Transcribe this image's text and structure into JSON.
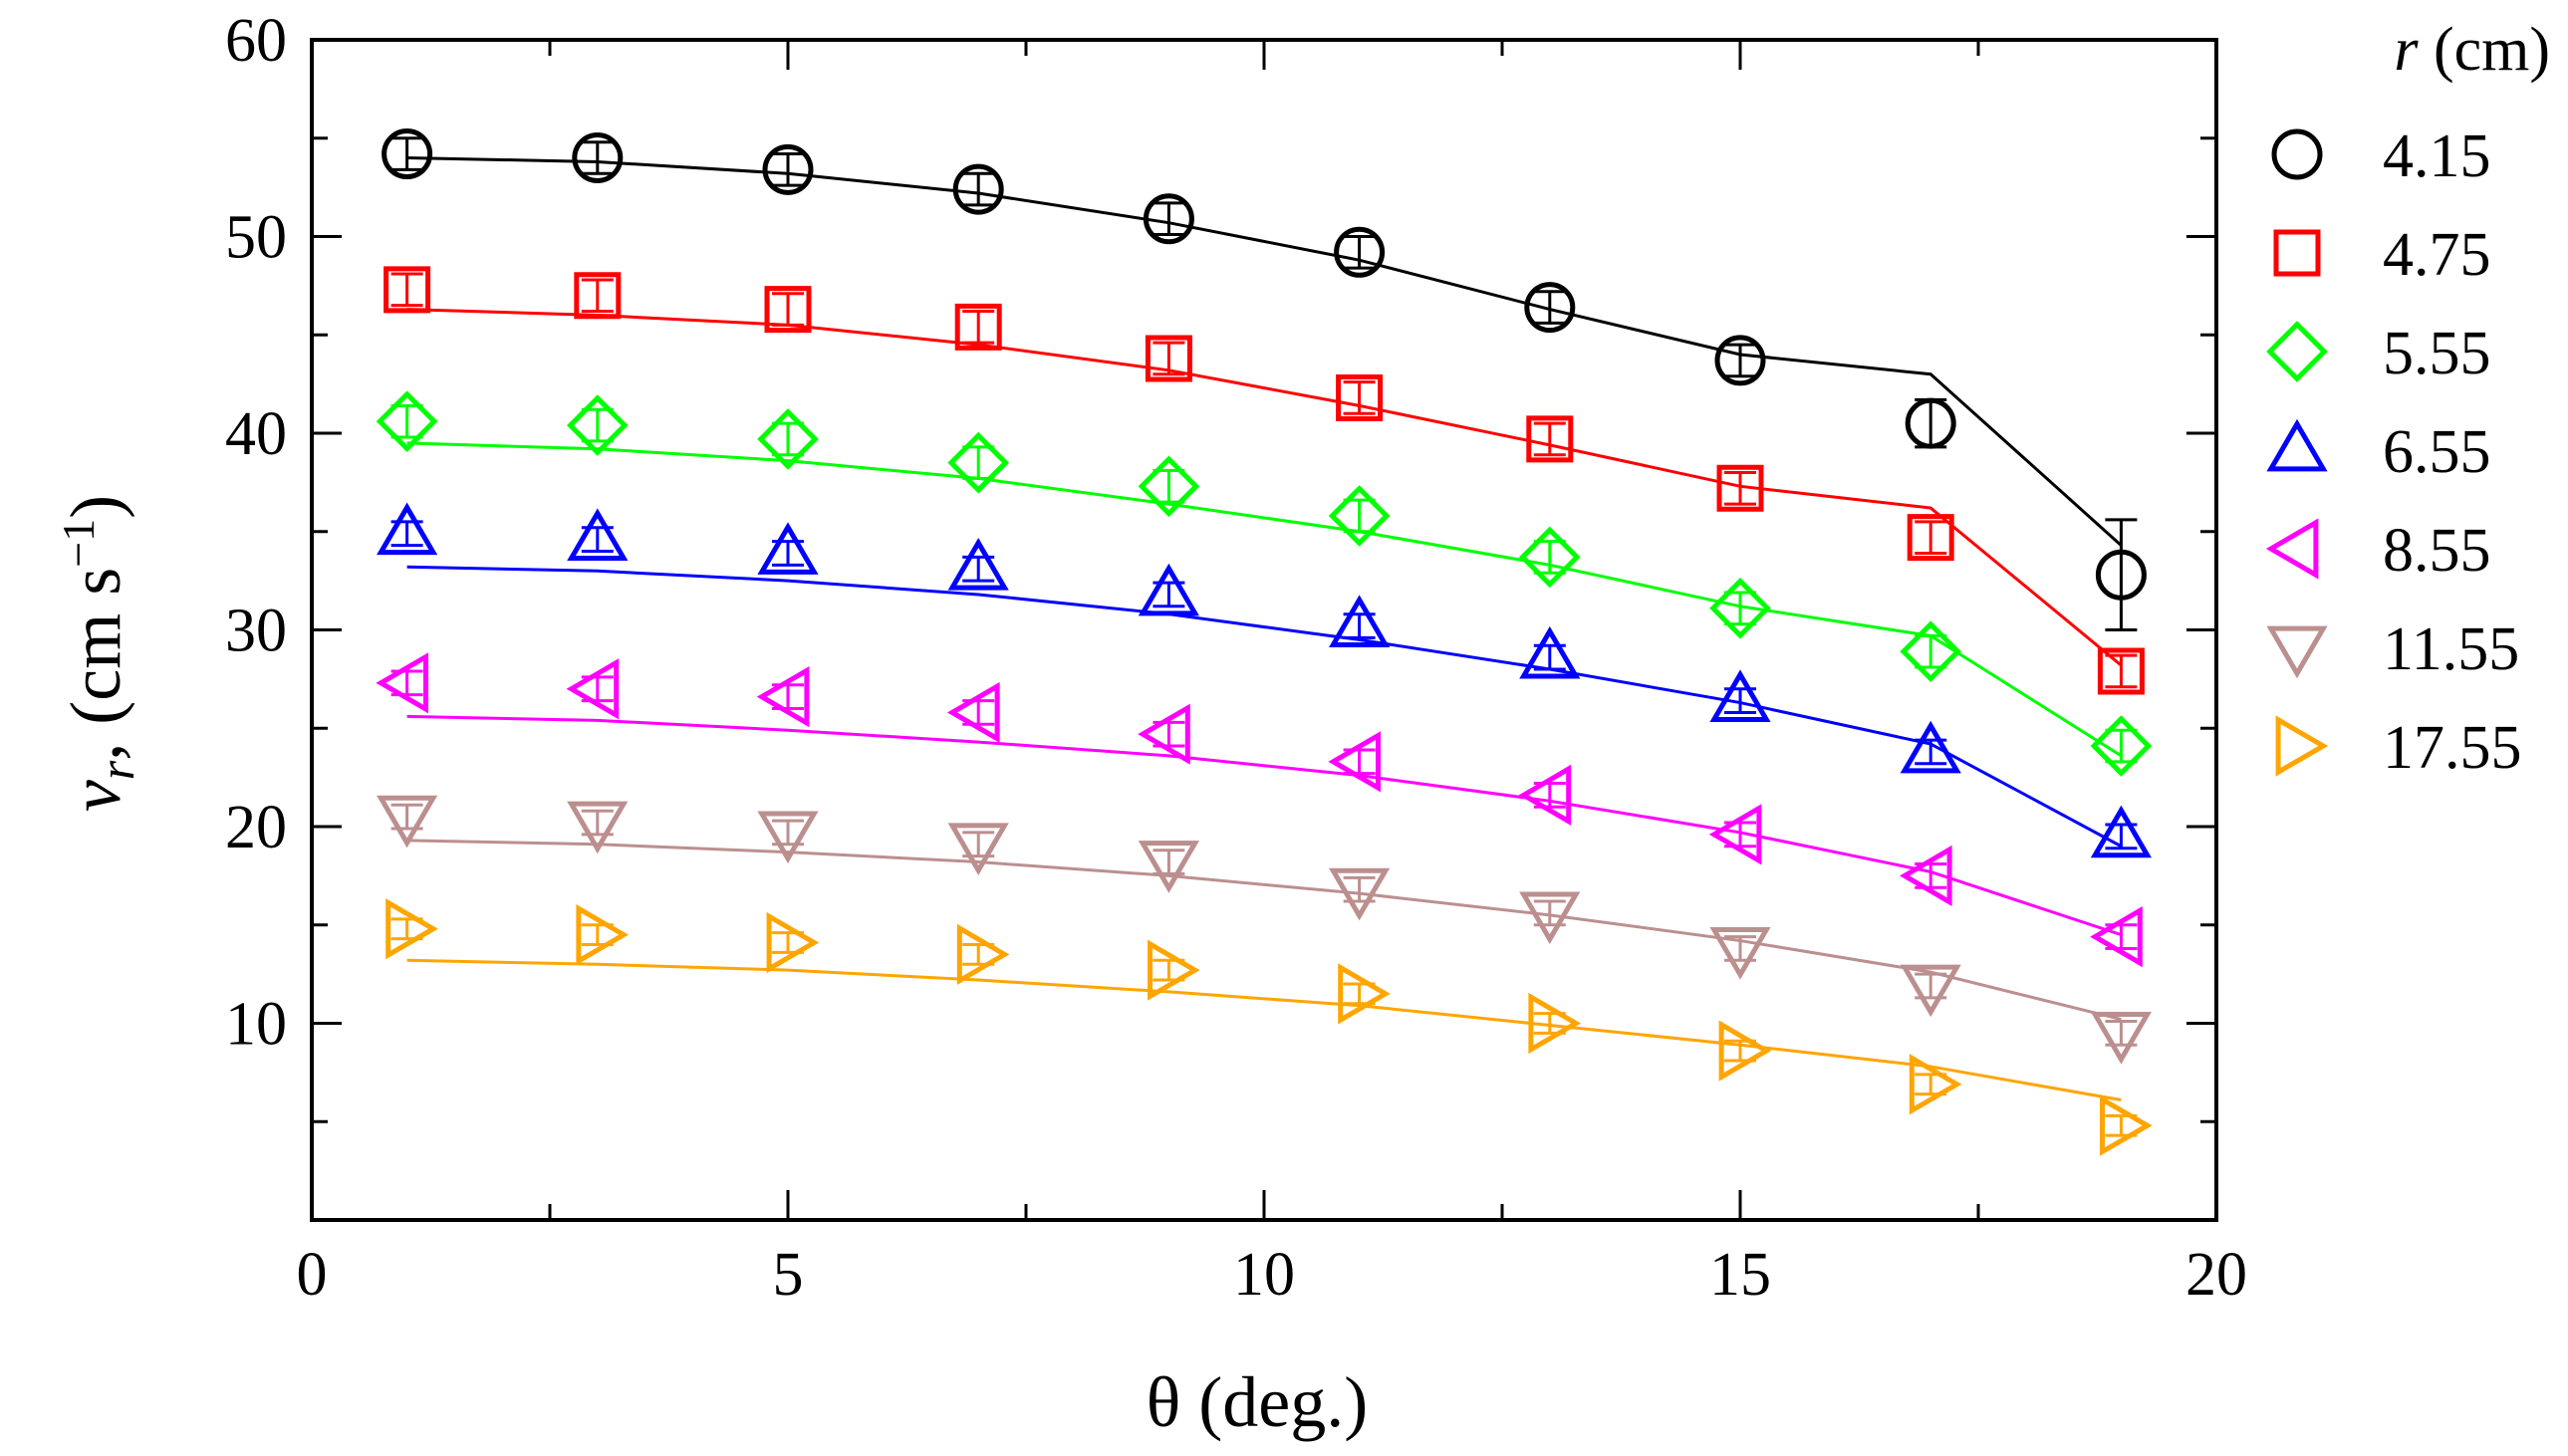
{
  "chart_data": {
    "type": "line",
    "xlabel": "θ (deg.)",
    "ylabel_var": "v",
    "ylabel_sub": "r",
    "ylabel_unit_prefix": ", (cm s",
    "ylabel_unit_sup": "−1",
    "ylabel_unit_suffix": ")",
    "xlim": [
      0,
      20
    ],
    "ylim": [
      0,
      60
    ],
    "xticks": [
      0,
      5,
      10,
      15,
      20
    ],
    "yticks": [
      10,
      20,
      30,
      40,
      50,
      60
    ],
    "x_minor_ticks": [
      2.5,
      7.5,
      12.5,
      17.5
    ],
    "y_minor_ticks": [
      5,
      15,
      25,
      35,
      45,
      55
    ],
    "legend_title_var": "r",
    "legend_title_unit": " (cm)",
    "legend_position": "outside-right",
    "x": [
      1,
      3,
      5,
      7,
      9,
      11,
      13,
      15,
      17,
      19
    ],
    "series": [
      {
        "name": "4.15",
        "marker": "circle",
        "color": "#000000",
        "points": [
          54.2,
          54.0,
          53.4,
          52.4,
          50.9,
          49.2,
          46.4,
          43.7,
          40.5,
          32.8
        ],
        "errors": [
          0.8,
          0.8,
          0.8,
          0.8,
          0.8,
          0.8,
          0.8,
          0.8,
          1.2,
          2.8
        ],
        "fit": [
          54.0,
          53.8,
          53.2,
          52.2,
          50.7,
          48.8,
          46.3,
          44.0,
          43.0,
          34.3
        ]
      },
      {
        "name": "4.75",
        "marker": "square",
        "color": "#ff0000",
        "points": [
          47.3,
          47.0,
          46.3,
          45.4,
          43.8,
          41.8,
          39.7,
          37.2,
          34.7,
          27.9
        ],
        "errors": [
          0.8,
          0.8,
          0.8,
          0.8,
          0.8,
          0.8,
          0.8,
          0.8,
          0.8,
          0.8
        ],
        "fit": [
          46.3,
          46.0,
          45.5,
          44.5,
          43.2,
          41.4,
          39.4,
          37.3,
          36.2,
          28.2
        ]
      },
      {
        "name": "5.55",
        "marker": "diamond",
        "color": "#00ff00",
        "points": [
          40.6,
          40.4,
          39.7,
          38.5,
          37.3,
          35.8,
          33.7,
          31.1,
          28.9,
          24.1
        ],
        "errors": [
          0.8,
          0.8,
          0.8,
          0.8,
          0.8,
          0.8,
          0.8,
          0.8,
          0.8,
          0.8
        ],
        "fit": [
          39.5,
          39.2,
          38.6,
          37.7,
          36.4,
          35.0,
          33.3,
          31.2,
          29.7,
          23.6
        ]
      },
      {
        "name": "6.55",
        "marker": "triangle-up",
        "color": "#0000ff",
        "points": [
          34.9,
          34.6,
          33.9,
          33.1,
          31.8,
          30.2,
          28.6,
          26.4,
          23.8,
          19.5
        ],
        "errors": [
          0.6,
          0.6,
          0.6,
          0.6,
          0.6,
          0.6,
          0.6,
          0.6,
          0.6,
          0.6
        ],
        "fit": [
          33.2,
          33.0,
          32.5,
          31.8,
          30.8,
          29.5,
          28.0,
          26.3,
          24.2,
          19.0
        ]
      },
      {
        "name": "8.55",
        "marker": "triangle-left",
        "color": "#ff00ff",
        "points": [
          27.3,
          27.0,
          26.6,
          25.8,
          24.7,
          23.3,
          21.6,
          19.6,
          17.5,
          14.4
        ],
        "errors": [
          0.6,
          0.6,
          0.6,
          0.6,
          0.6,
          0.6,
          0.6,
          0.6,
          0.6,
          0.6
        ],
        "fit": [
          25.6,
          25.4,
          24.9,
          24.3,
          23.6,
          22.6,
          21.3,
          19.7,
          17.7,
          14.5
        ]
      },
      {
        "name": "11.55",
        "marker": "triangle-down",
        "color": "#bc8f8f",
        "points": [
          20.5,
          20.2,
          19.7,
          19.1,
          18.2,
          16.8,
          15.6,
          13.8,
          11.9,
          9.5
        ],
        "errors": [
          0.6,
          0.6,
          0.6,
          0.6,
          0.6,
          0.6,
          0.6,
          0.6,
          0.6,
          0.6
        ],
        "fit": [
          19.3,
          19.1,
          18.7,
          18.2,
          17.5,
          16.6,
          15.5,
          14.2,
          12.6,
          10.2
        ]
      },
      {
        "name": "17.55",
        "marker": "triangle-right",
        "color": "#ffa500",
        "points": [
          14.8,
          14.5,
          14.1,
          13.5,
          12.7,
          11.5,
          10.0,
          8.6,
          6.9,
          4.8
        ],
        "errors": [
          0.5,
          0.5,
          0.5,
          0.5,
          0.5,
          0.5,
          0.5,
          0.5,
          0.5,
          0.5
        ],
        "fit": [
          13.2,
          13.0,
          12.7,
          12.2,
          11.6,
          10.9,
          9.9,
          8.9,
          7.8,
          6.1
        ]
      }
    ]
  }
}
